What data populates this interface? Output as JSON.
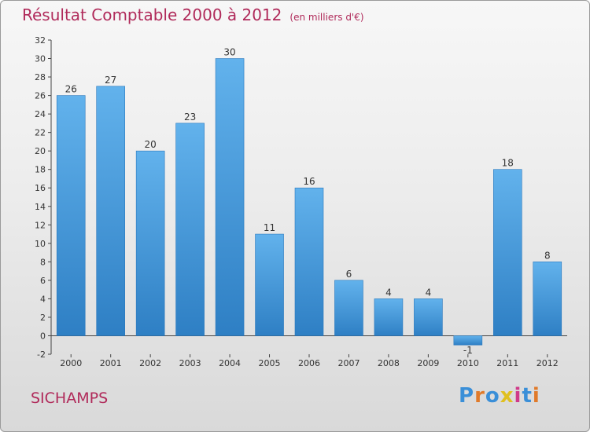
{
  "title": "Résultat Comptable 2000 à 2012",
  "subtitle": "(en milliers d'€)",
  "commune": "SICHAMPS",
  "logo": {
    "text": "Proxiti",
    "colors": [
      "#3a8fd8",
      "#e07a2a",
      "#3a8fd8",
      "#e0c020",
      "#d03a8a",
      "#3a8fd8",
      "#e07a2a"
    ]
  },
  "colors": {
    "bar": "#4a9fe0",
    "title": "#b02a5a"
  },
  "chart_data": {
    "type": "bar",
    "categories": [
      "2000",
      "2001",
      "2002",
      "2003",
      "2004",
      "2005",
      "2006",
      "2007",
      "2008",
      "2009",
      "2010",
      "2011",
      "2012"
    ],
    "values": [
      26,
      27,
      20,
      23,
      30,
      11,
      16,
      6,
      4,
      4,
      -1,
      18,
      8
    ],
    "ylim": [
      -2,
      32
    ],
    "yticks": [
      -2,
      0,
      2,
      4,
      6,
      8,
      10,
      12,
      14,
      16,
      18,
      20,
      22,
      24,
      26,
      28,
      30,
      32
    ],
    "grid": false
  }
}
